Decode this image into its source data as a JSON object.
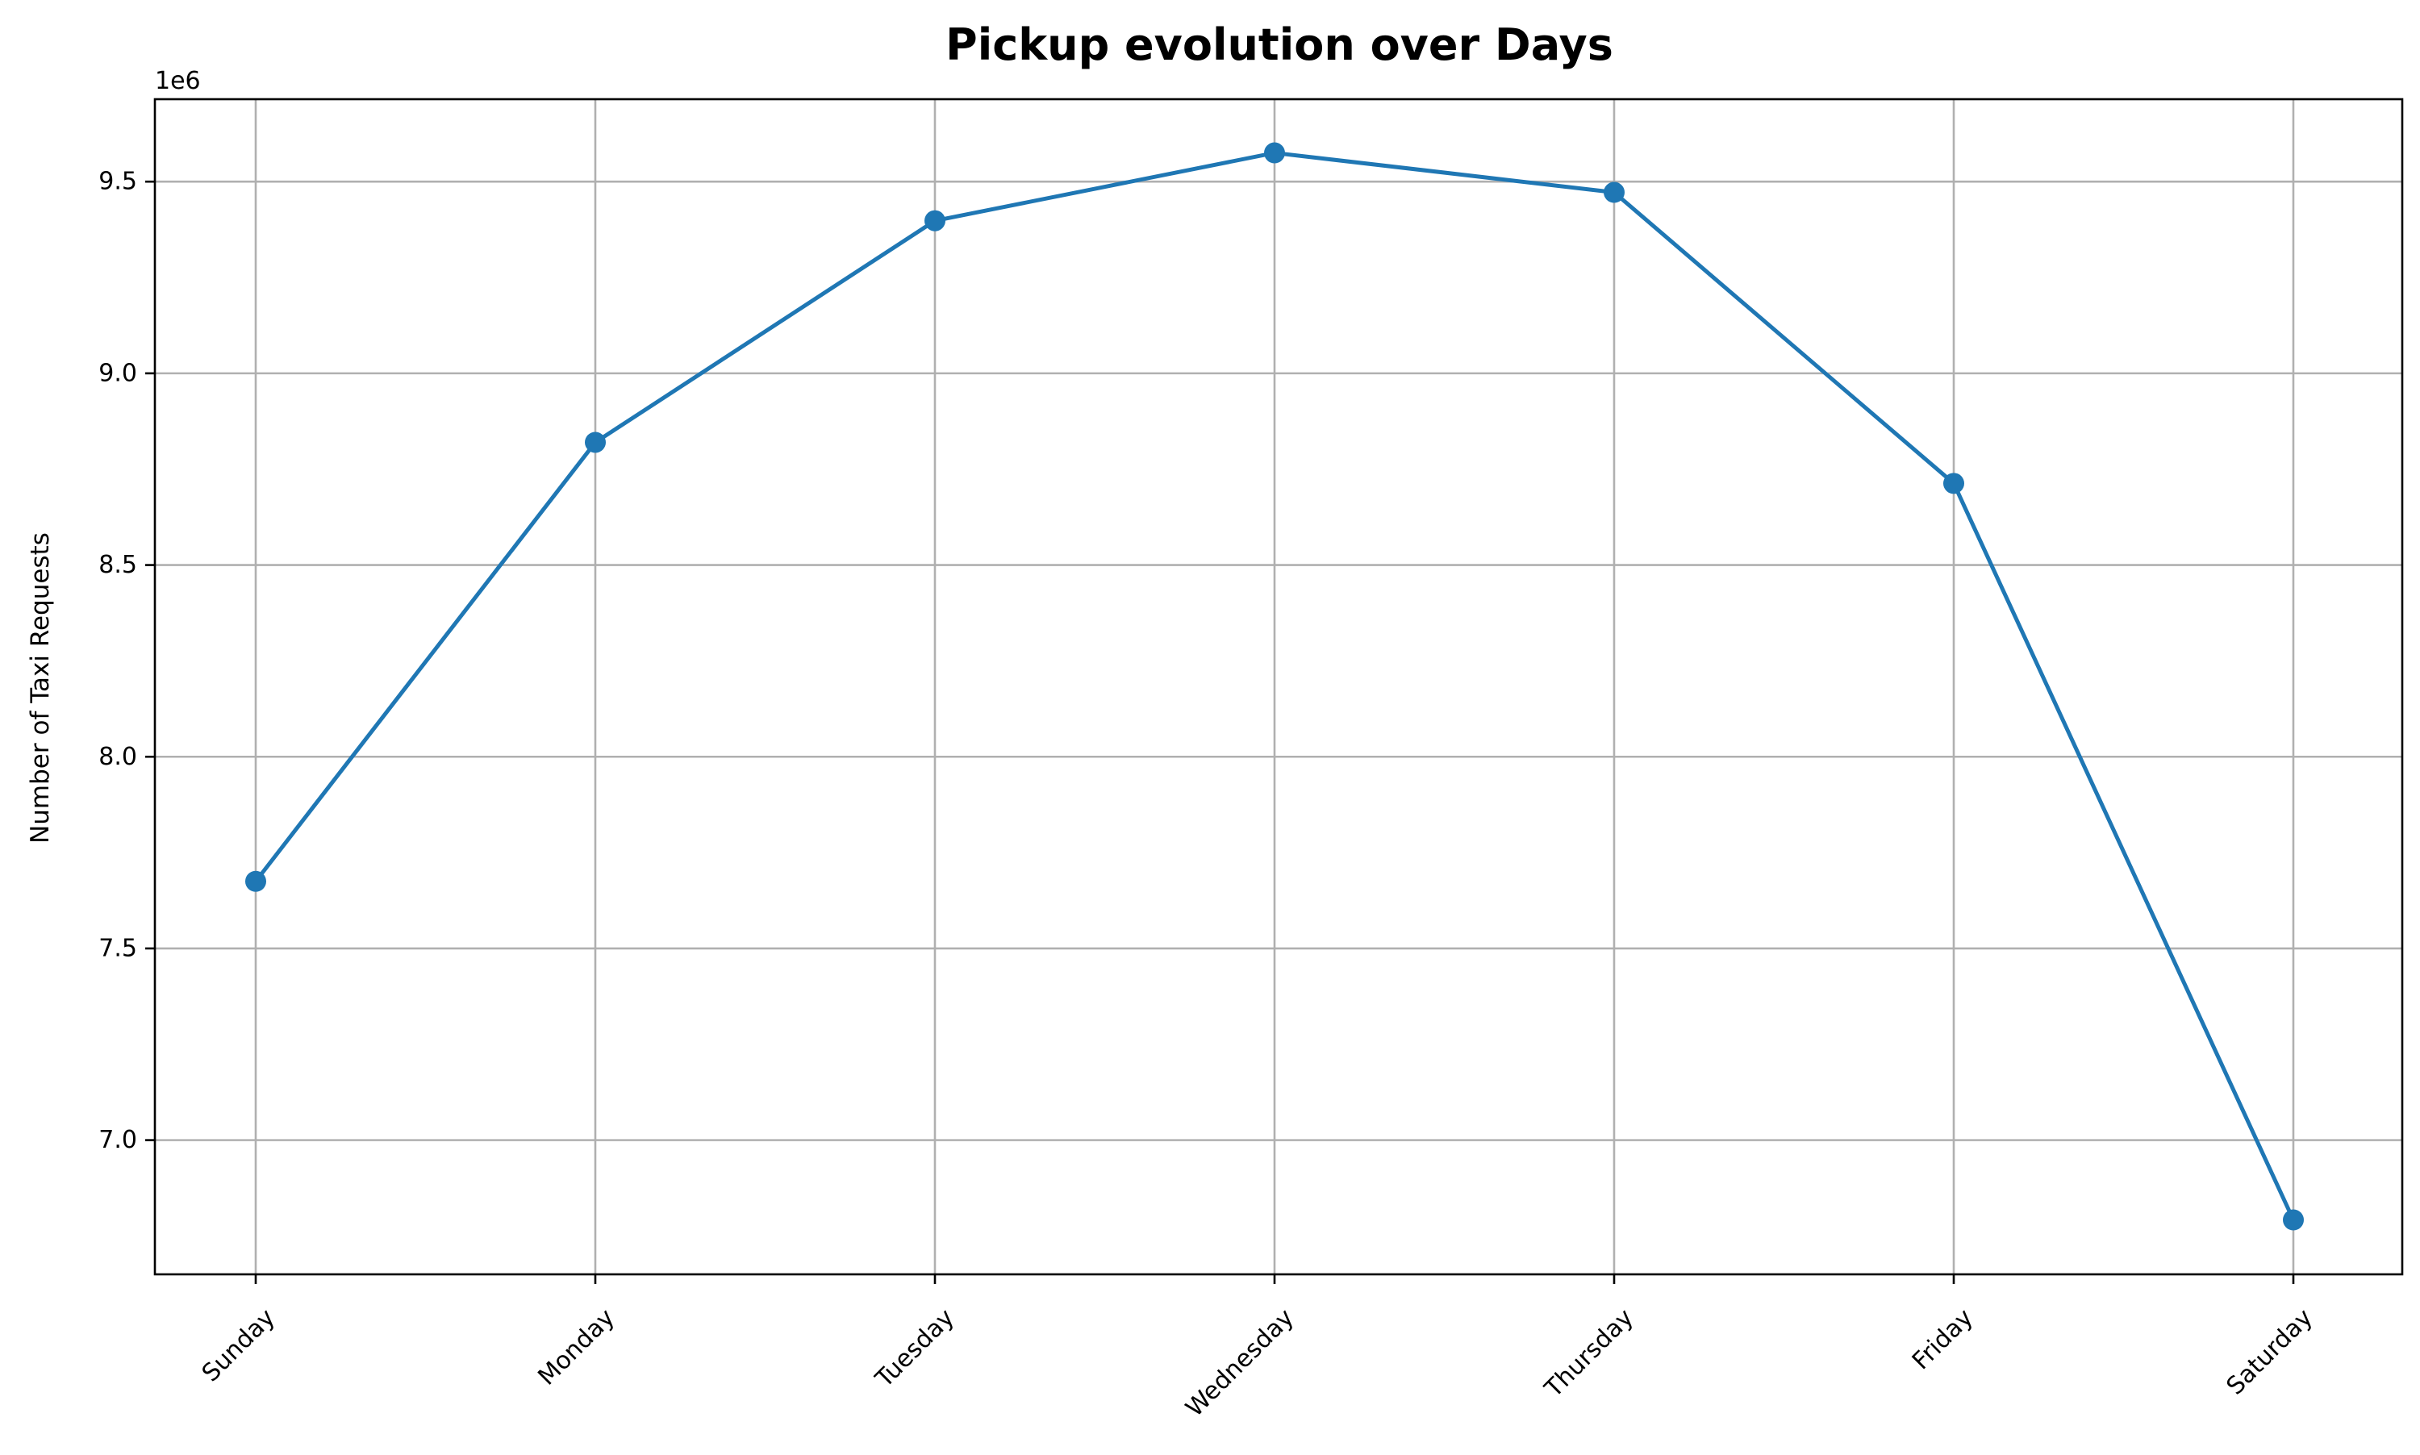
{
  "chart_data": {
    "type": "line",
    "title": "Pickup evolution over Days",
    "xlabel": "",
    "ylabel": "Number of Taxi Requests",
    "y_offset_label": "1e6",
    "y_scale": 1000000,
    "categories": [
      "Sunday",
      "Monday",
      "Tuesday",
      "Wednesday",
      "Thursday",
      "Friday",
      "Saturday"
    ],
    "series": [
      {
        "values": [
          7675000,
          8820000,
          9398000,
          9575000,
          9472000,
          8713000,
          6792000
        ],
        "color": "#1f77b4",
        "marker": "circle"
      }
    ],
    "ylim": [
      6650000,
      9715000
    ],
    "yticks": [
      7000000,
      7500000,
      8000000,
      8500000,
      9000000,
      9500000
    ],
    "ytick_labels": [
      "7.0",
      "7.5",
      "8.0",
      "8.5",
      "9.0",
      "9.5"
    ],
    "grid": true,
    "legend": "none"
  }
}
